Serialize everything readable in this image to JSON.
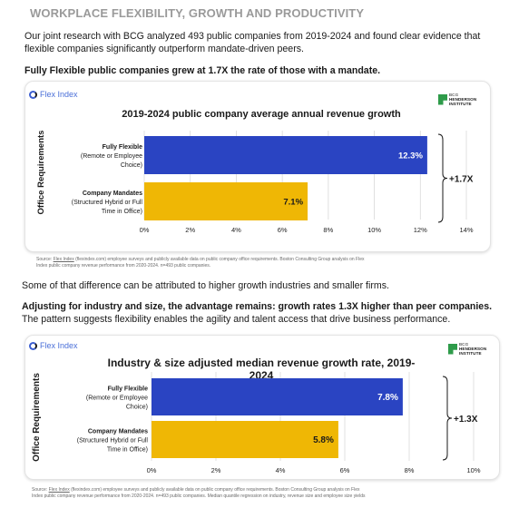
{
  "header": {
    "title": "WORKPLACE FLEXIBILITY, GROWTH AND PRODUCTIVITY",
    "intro": "Our joint research with BCG analyzed 493 public companies from 2019-2024 and found clear evidence that flexible companies significantly outperform mandate-driven peers.",
    "subhead": "Fully Flexible public companies grew at 1.7X the rate of those with a mandate."
  },
  "middle": {
    "text": "Some of that difference can be attributed to higher growth industries and smaller firms.",
    "bold": "Adjusting for industry and size, the advantage remains: growth rates 1.3X higher than peer companies.",
    "rest": " The pattern suggests flexibility enables the agility and talent access that drive business performance."
  },
  "logos": {
    "flex_index": "Flex Index",
    "bcg_line1": "BCG",
    "bcg_line2": "HENDERSON",
    "bcg_line3": "INSTITUTE"
  },
  "colors": {
    "flexible": "#2a44c2",
    "mandate": "#efb705",
    "grid": "#d9d9d9"
  },
  "sources": {
    "chart1_prefix": "Source: ",
    "chart1_link": "Flex Index",
    "chart1_line1_rest": " (flexindex.com) employee surveys and publicly available data on public company office requirements. Boston Consulting Group analysis on Flex",
    "chart1_line2": "Index public company revenue performance from 2020-2024. n=493 public companies.",
    "chart2_prefix": "Source: ",
    "chart2_link": "Flex Index",
    "chart2_line1_rest": " (flexindex.com) employee surveys and publicly available data on public company office requirements. Boston Consulting Group analysis on Flex",
    "chart2_line2": "Index public company revenue performance from 2020-2024. n=493 public companies. Median quantile regression on industry, revenue size and employee size yields"
  },
  "chart_data": [
    {
      "type": "bar",
      "orientation": "horizontal",
      "title": "2019-2024 public company average annual revenue growth",
      "ylabel": "Office Requirements",
      "categories": [
        {
          "name": "Fully Flexible",
          "sub1": "(Remote or Employee",
          "sub2": "Choice)"
        },
        {
          "name": "Company Mandates",
          "sub1": "(Structured Hybrid or Full",
          "sub2": "Time in Office)"
        }
      ],
      "values": [
        12.3,
        7.1
      ],
      "value_labels": [
        "12.3%",
        "7.1%"
      ],
      "xlim": [
        0,
        14
      ],
      "xticks": [
        "0%",
        "2%",
        "4%",
        "6%",
        "8%",
        "10%",
        "12%",
        "14%"
      ],
      "grid": true,
      "annotation": "+1.7X"
    },
    {
      "type": "bar",
      "orientation": "horizontal",
      "title": "Industry & size adjusted median revenue growth rate, 2019-2024",
      "ylabel": "Office Requirements",
      "categories": [
        {
          "name": "Fully Flexible",
          "sub1": "(Remote or Employee",
          "sub2": "Choice)"
        },
        {
          "name": "Company Mandates",
          "sub1": "(Structured Hybrid or Full",
          "sub2": "Time in Office)"
        }
      ],
      "values": [
        7.8,
        5.8
      ],
      "value_labels": [
        "7.8%",
        "5.8%"
      ],
      "xlim": [
        0,
        10
      ],
      "xticks": [
        "0%",
        "2%",
        "4%",
        "6%",
        "8%",
        "10%"
      ],
      "grid": true,
      "annotation": "+1.3X"
    }
  ]
}
